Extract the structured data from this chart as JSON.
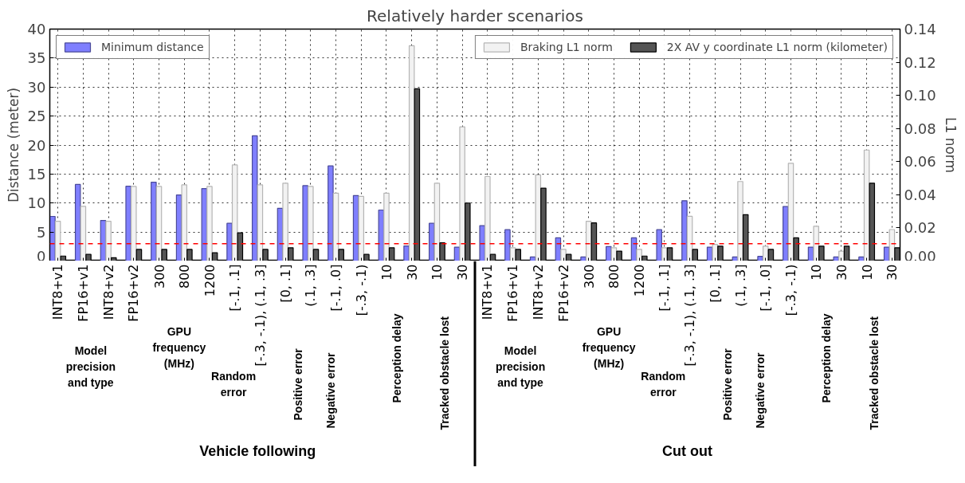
{
  "chart_data": {
    "type": "bar",
    "title": "Relatively harder scenarios",
    "ylabel": "Distance (meter)",
    "y2label": "L1 norm",
    "categories": [
      "INT8+v1",
      "FP16+v1",
      "INT8+v2",
      "FP16+v2",
      "300",
      "800",
      "1200",
      "[-.1, .1]",
      "[-.3, -.1), (.1, .3]",
      "[0, .1]",
      "(.1, .3]",
      "[-.1, .0]",
      "[-.3, -.1)",
      "10",
      "30",
      "10",
      "30",
      "INT8+v1",
      "FP16+v1",
      "INT8+v2",
      "FP16+v2",
      "300",
      "800",
      "1200",
      "[-.1, .1]",
      "[-.3, -.1), (.1, .3]",
      "[0, .1]",
      "(.1, .3]",
      "[-.1, .0]",
      "[-.3, -.1)",
      "10",
      "30",
      "10",
      "30"
    ],
    "series": [
      {
        "name": "Minimum distance",
        "color": "#7f7fff",
        "axis": "y",
        "values": [
          7.7,
          13.2,
          7.0,
          12.9,
          13.6,
          11.4,
          12.5,
          6.5,
          21.6,
          9.1,
          13.0,
          16.4,
          11.3,
          8.8,
          2.6,
          6.5,
          2.4,
          6.1,
          5.4,
          0.7,
          4.0,
          0.7,
          2.5,
          4.0,
          5.4,
          10.4,
          2.4,
          0.7,
          0.8,
          9.4,
          2.4,
          0.7,
          0.7,
          2.4
        ]
      },
      {
        "name": "Braking L1 norm",
        "color": "#f2f2f2",
        "axis": "y2",
        "values": [
          0.024,
          0.033,
          0.024,
          0.045,
          0.045,
          0.046,
          0.045,
          0.058,
          0.046,
          0.047,
          0.045,
          0.041,
          0.039,
          0.041,
          0.13,
          0.047,
          0.081,
          0.051,
          0.008,
          0.052,
          0.007,
          0.024,
          0.008,
          0.007,
          0.008,
          0.027,
          0.01,
          0.048,
          0.009,
          0.059,
          0.021,
          0.006,
          0.067,
          0.019
        ]
      },
      {
        "name": "2X AV y coordinate L1 norm (kilometer)",
        "color": "#555555",
        "axis": "y2",
        "values": [
          0.003,
          0.004,
          0.002,
          0.007,
          0.007,
          0.007,
          0.005,
          0.017,
          0.007,
          0.008,
          0.007,
          0.007,
          0.004,
          0.008,
          0.104,
          0.011,
          0.035,
          0.004,
          0.007,
          0.044,
          0.004,
          0.023,
          0.006,
          0.003,
          0.008,
          0.007,
          0.009,
          0.028,
          0.007,
          0.014,
          0.009,
          0.009,
          0.047,
          0.008
        ]
      }
    ],
    "ylim": [
      0,
      40
    ],
    "yticks": [
      0,
      5,
      10,
      15,
      20,
      25,
      30,
      35,
      40
    ],
    "y2lim": [
      0,
      0.14
    ],
    "y2ticks": [
      {
        "value": 0,
        "label": "0.00"
      },
      {
        "value": 0.02,
        "label": "0.02"
      },
      {
        "value": 0.04,
        "label": "0.04"
      },
      {
        "value": 0.06,
        "label": "0.06"
      },
      {
        "value": 0.08,
        "label": "0.08"
      },
      {
        "value": 0.1,
        "label": "0.10"
      },
      {
        "value": 0.12,
        "label": "0.12"
      },
      {
        "value": 0.14,
        "label": "0.14"
      }
    ],
    "ref_lines": [
      {
        "axis": "y",
        "value": 3,
        "color": "#ff0000",
        "line_style": "dashed"
      }
    ],
    "grid": true,
    "legend": "top",
    "annotations": [
      "Model\nprecision\nand type",
      "GPU\nfrequency\n(MHz)",
      "Random\nerror",
      "Positive error",
      "Negative error",
      "Perception delay",
      "Tracked obstacle lost",
      "Vehicle following",
      "Model\nprecision\nand type",
      "GPU\nfrequency\n(MHz)",
      "Random\nerror",
      "Positive error",
      "Negative error",
      "Perception delay",
      "Tracked obstacle lost",
      "Cut out"
    ]
  }
}
